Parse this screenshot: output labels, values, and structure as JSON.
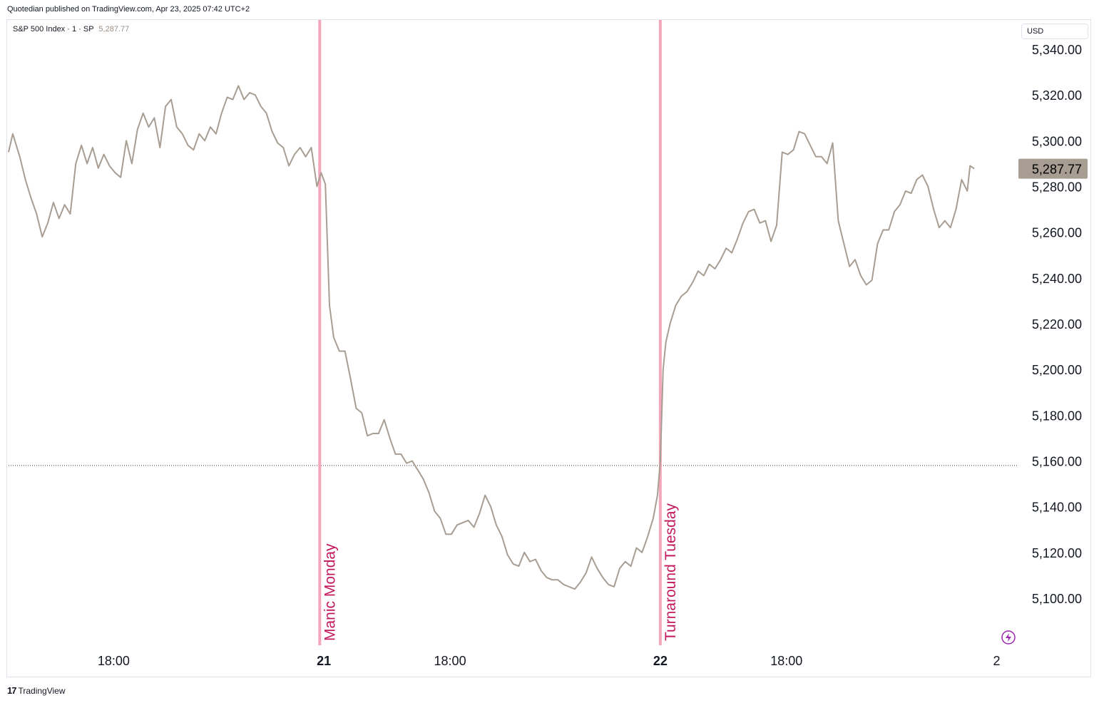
{
  "header": {
    "published": "Quotedian published on TradingView.com, Apr 23, 2025 07:42 UTC+2"
  },
  "legend": {
    "symbol": "S&P 500 Index · 1 · SP",
    "last_value": "5,287.77"
  },
  "currency": "USD",
  "footer": {
    "brand": "TradingView",
    "logo_icon": "tradingview-logo-icon"
  },
  "colors": {
    "line": "#a89d93",
    "marker": "#f4a7bb",
    "annotation_text": "#c2185b",
    "price_label_bg": "#a89d93"
  },
  "chart_data": {
    "type": "line",
    "title": "",
    "xlabel": "",
    "ylabel": "",
    "ylim": [
      5085,
      5350
    ],
    "xlim": [
      0,
      72
    ],
    "y_ticks": [
      5100,
      5120,
      5140,
      5160,
      5180,
      5200,
      5220,
      5240,
      5260,
      5280,
      5300,
      5320,
      5340
    ],
    "y_tick_labels": [
      "5,100.00",
      "5,120.00",
      "5,140.00",
      "5,160.00",
      "5,180.00",
      "5,200.00",
      "5,220.00",
      "5,240.00",
      "5,260.00",
      "5,280.00",
      "5,300.00",
      "5,320.00",
      "5,340.00"
    ],
    "x_ticks": [
      {
        "pos": 7.5,
        "label": "18:00",
        "bold": false
      },
      {
        "pos": 22.5,
        "label": "21",
        "bold": true
      },
      {
        "pos": 31.5,
        "label": "18:00",
        "bold": false
      },
      {
        "pos": 46.5,
        "label": "22",
        "bold": true
      },
      {
        "pos": 55.5,
        "label": "18:00",
        "bold": false
      },
      {
        "pos": 70.5,
        "label": "2",
        "bold": false
      }
    ],
    "last_price": {
      "value": 5287.77,
      "label": "5,287.77"
    },
    "reference_line": {
      "value": 5158,
      "style": "dotted"
    },
    "markers": [
      {
        "pos": 22.2,
        "label": "Manic Monday"
      },
      {
        "pos": 46.5,
        "label": "Turnaround Tuesday"
      }
    ],
    "series": [
      {
        "points": [
          [
            0.0,
            5295
          ],
          [
            0.3,
            5303
          ],
          [
            0.8,
            5293
          ],
          [
            1.2,
            5283
          ],
          [
            1.6,
            5275
          ],
          [
            2.0,
            5268
          ],
          [
            2.4,
            5258
          ],
          [
            2.8,
            5264
          ],
          [
            3.2,
            5273
          ],
          [
            3.6,
            5266
          ],
          [
            4.0,
            5272
          ],
          [
            4.4,
            5268
          ],
          [
            4.8,
            5290
          ],
          [
            5.2,
            5298
          ],
          [
            5.6,
            5290
          ],
          [
            6.0,
            5297
          ],
          [
            6.4,
            5288
          ],
          [
            6.8,
            5294
          ],
          [
            7.2,
            5289
          ],
          [
            7.6,
            5286
          ],
          [
            8.0,
            5284
          ],
          [
            8.4,
            5300
          ],
          [
            8.8,
            5290
          ],
          [
            9.2,
            5305
          ],
          [
            9.6,
            5312
          ],
          [
            10.0,
            5306
          ],
          [
            10.4,
            5310
          ],
          [
            10.8,
            5297
          ],
          [
            11.2,
            5315
          ],
          [
            11.6,
            5318
          ],
          [
            12.0,
            5306
          ],
          [
            12.4,
            5303
          ],
          [
            12.8,
            5298
          ],
          [
            13.2,
            5296
          ],
          [
            13.6,
            5303
          ],
          [
            14.0,
            5300
          ],
          [
            14.4,
            5306
          ],
          [
            14.8,
            5303
          ],
          [
            15.2,
            5312
          ],
          [
            15.6,
            5319
          ],
          [
            16.0,
            5318
          ],
          [
            16.4,
            5324
          ],
          [
            16.8,
            5318
          ],
          [
            17.2,
            5321
          ],
          [
            17.6,
            5320
          ],
          [
            18.0,
            5315
          ],
          [
            18.4,
            5312
          ],
          [
            18.8,
            5304
          ],
          [
            19.2,
            5299
          ],
          [
            19.6,
            5297
          ],
          [
            20.0,
            5289
          ],
          [
            20.4,
            5294
          ],
          [
            20.8,
            5297
          ],
          [
            21.2,
            5293
          ],
          [
            21.6,
            5297
          ],
          [
            22.0,
            5280
          ],
          [
            22.3,
            5286
          ],
          [
            22.6,
            5281
          ],
          [
            22.9,
            5228
          ],
          [
            23.2,
            5214
          ],
          [
            23.6,
            5208
          ],
          [
            24.0,
            5208
          ],
          [
            24.4,
            5196
          ],
          [
            24.8,
            5183
          ],
          [
            25.2,
            5181
          ],
          [
            25.6,
            5171
          ],
          [
            26.0,
            5172
          ],
          [
            26.4,
            5172
          ],
          [
            26.8,
            5178
          ],
          [
            27.2,
            5170
          ],
          [
            27.6,
            5163
          ],
          [
            28.0,
            5163
          ],
          [
            28.4,
            5159
          ],
          [
            28.8,
            5160
          ],
          [
            29.2,
            5156
          ],
          [
            29.6,
            5152
          ],
          [
            30.0,
            5146
          ],
          [
            30.4,
            5138
          ],
          [
            30.8,
            5135
          ],
          [
            31.2,
            5128
          ],
          [
            31.6,
            5128
          ],
          [
            32.0,
            5132
          ],
          [
            32.4,
            5133
          ],
          [
            32.8,
            5134
          ],
          [
            33.2,
            5131
          ],
          [
            33.6,
            5137
          ],
          [
            34.0,
            5145
          ],
          [
            34.4,
            5140
          ],
          [
            34.8,
            5132
          ],
          [
            35.2,
            5127
          ],
          [
            35.6,
            5119
          ],
          [
            36.0,
            5115
          ],
          [
            36.4,
            5114
          ],
          [
            36.8,
            5120
          ],
          [
            37.2,
            5116
          ],
          [
            37.6,
            5117
          ],
          [
            38.0,
            5112
          ],
          [
            38.4,
            5109
          ],
          [
            38.8,
            5108
          ],
          [
            39.2,
            5108
          ],
          [
            39.6,
            5106
          ],
          [
            40.0,
            5105
          ],
          [
            40.4,
            5104
          ],
          [
            40.8,
            5107
          ],
          [
            41.2,
            5111
          ],
          [
            41.6,
            5118
          ],
          [
            42.0,
            5113
          ],
          [
            42.4,
            5109
          ],
          [
            42.8,
            5106
          ],
          [
            43.2,
            5105
          ],
          [
            43.6,
            5113
          ],
          [
            44.0,
            5116
          ],
          [
            44.4,
            5114
          ],
          [
            44.8,
            5122
          ],
          [
            45.2,
            5120
          ],
          [
            45.6,
            5127
          ],
          [
            46.0,
            5135
          ],
          [
            46.3,
            5145
          ],
          [
            46.5,
            5160
          ],
          [
            46.7,
            5200
          ],
          [
            46.9,
            5212
          ],
          [
            47.2,
            5220
          ],
          [
            47.6,
            5228
          ],
          [
            48.0,
            5232
          ],
          [
            48.4,
            5234
          ],
          [
            48.8,
            5238
          ],
          [
            49.2,
            5243
          ],
          [
            49.6,
            5241
          ],
          [
            50.0,
            5246
          ],
          [
            50.4,
            5244
          ],
          [
            50.8,
            5248
          ],
          [
            51.2,
            5253
          ],
          [
            51.6,
            5251
          ],
          [
            52.0,
            5257
          ],
          [
            52.4,
            5264
          ],
          [
            52.8,
            5269
          ],
          [
            53.2,
            5270
          ],
          [
            53.6,
            5264
          ],
          [
            54.0,
            5265
          ],
          [
            54.4,
            5256
          ],
          [
            54.8,
            5263
          ],
          [
            55.2,
            5295
          ],
          [
            55.6,
            5294
          ],
          [
            56.0,
            5296
          ],
          [
            56.4,
            5304
          ],
          [
            56.8,
            5303
          ],
          [
            57.2,
            5298
          ],
          [
            57.6,
            5293
          ],
          [
            58.0,
            5293
          ],
          [
            58.4,
            5290
          ],
          [
            58.8,
            5299
          ],
          [
            59.2,
            5265
          ],
          [
            59.6,
            5255
          ],
          [
            60.0,
            5245
          ],
          [
            60.4,
            5248
          ],
          [
            60.8,
            5241
          ],
          [
            61.2,
            5237
          ],
          [
            61.6,
            5239
          ],
          [
            62.0,
            5255
          ],
          [
            62.4,
            5261
          ],
          [
            62.8,
            5261
          ],
          [
            63.2,
            5269
          ],
          [
            63.6,
            5272
          ],
          [
            64.0,
            5278
          ],
          [
            64.4,
            5277
          ],
          [
            64.8,
            5283
          ],
          [
            65.2,
            5285
          ],
          [
            65.6,
            5280
          ],
          [
            66.0,
            5270
          ],
          [
            66.4,
            5262
          ],
          [
            66.8,
            5265
          ],
          [
            67.2,
            5262
          ],
          [
            67.6,
            5270
          ],
          [
            68.0,
            5283
          ],
          [
            68.4,
            5278
          ],
          [
            68.6,
            5289
          ],
          [
            68.9,
            5287.77
          ]
        ]
      }
    ]
  }
}
